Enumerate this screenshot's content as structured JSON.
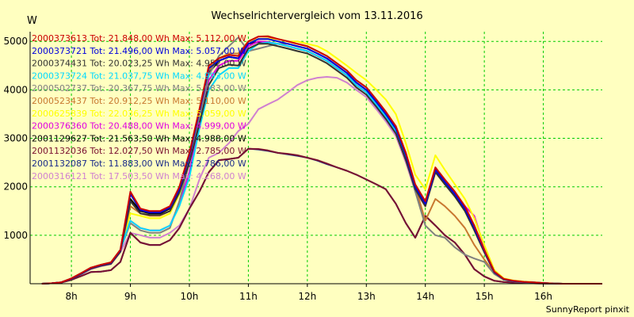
{
  "chart_data": {
    "type": "line",
    "title": "Wechselrichtervergleich vom 13.11.2016",
    "ylabel": "W",
    "xlabel": "",
    "footer": "SunnyReport pinxit",
    "ylim": [
      0,
      5200
    ],
    "xlim": [
      7.3,
      17.0
    ],
    "grid": true,
    "legend_position": "top-left",
    "yticks": [
      1000,
      2000,
      3000,
      4000,
      5000
    ],
    "xticks": [
      {
        "v": 8,
        "label": "8h"
      },
      {
        "v": 9,
        "label": "9h"
      },
      {
        "v": 10,
        "label": "10h"
      },
      {
        "v": 11,
        "label": "11h"
      },
      {
        "v": 12,
        "label": "12h"
      },
      {
        "v": 13,
        "label": "13h"
      },
      {
        "v": 14,
        "label": "14h"
      },
      {
        "v": 15,
        "label": "15h"
      },
      {
        "v": 16,
        "label": "16h"
      }
    ],
    "x": [
      7.5,
      7.67,
      7.83,
      8.0,
      8.17,
      8.33,
      8.5,
      8.67,
      8.83,
      9.0,
      9.17,
      9.33,
      9.5,
      9.67,
      9.83,
      10.0,
      10.17,
      10.33,
      10.5,
      10.67,
      10.83,
      11.0,
      11.17,
      11.33,
      11.5,
      11.67,
      11.83,
      12.0,
      12.17,
      12.33,
      12.5,
      12.67,
      12.83,
      13.0,
      13.17,
      13.33,
      13.5,
      13.67,
      13.83,
      14.0,
      14.17,
      14.33,
      14.5,
      14.67,
      14.83,
      15.0,
      15.17,
      15.33,
      15.5,
      15.67,
      15.83,
      16.0,
      16.17,
      16.33,
      16.5,
      16.67,
      16.83,
      17.0
    ],
    "series": [
      {
        "name": "2000373613",
        "tot": "Tot: 21.848,00 Wh",
        "max": "Max: 5.112,00 W",
        "color": "#cc0000",
        "values": [
          0,
          10,
          30,
          110,
          220,
          330,
          390,
          440,
          700,
          1900,
          1550,
          1500,
          1500,
          1600,
          2000,
          2700,
          3600,
          4500,
          4650,
          4720,
          4700,
          5000,
          5100,
          5100,
          5050,
          5000,
          4950,
          4900,
          4800,
          4700,
          4550,
          4400,
          4200,
          4050,
          3800,
          3550,
          3250,
          2700,
          2050,
          1700,
          2400,
          2150,
          1900,
          1600,
          1200,
          700,
          250,
          100,
          60,
          40,
          30,
          15,
          5,
          0,
          0,
          0,
          0,
          0
        ]
      },
      {
        "name": "2000373721",
        "tot": "Tot: 21.496,00 Wh",
        "max": "Max: 5.057,00 W",
        "color": "#0000dd",
        "values": [
          0,
          10,
          30,
          105,
          215,
          325,
          385,
          430,
          690,
          1850,
          1520,
          1470,
          1470,
          1570,
          1950,
          2650,
          3550,
          4450,
          4600,
          4680,
          4650,
          4950,
          5050,
          5050,
          5000,
          4950,
          4900,
          4850,
          4750,
          4650,
          4500,
          4350,
          4150,
          4000,
          3750,
          3500,
          3200,
          2650,
          2000,
          1650,
          2350,
          2100,
          1850,
          1550,
          1150,
          680,
          240,
          95,
          55,
          38,
          28,
          14,
          5,
          0,
          0,
          0,
          0,
          0
        ]
      },
      {
        "name": "2000374431",
        "tot": "Tot: 20.023,25 Wh",
        "max": "Max: 4.952,00 W",
        "color": "#333333",
        "values": [
          0,
          10,
          25,
          100,
          205,
          310,
          370,
          410,
          660,
          1700,
          1450,
          1420,
          1420,
          1500,
          1880,
          2500,
          3300,
          4100,
          4450,
          4520,
          4500,
          4850,
          4950,
          4950,
          4900,
          4850,
          4800,
          4750,
          4650,
          4550,
          4400,
          4250,
          4050,
          3900,
          3650,
          3400,
          3100,
          2550,
          1950,
          1600,
          2300,
          2050,
          1800,
          1500,
          1100,
          650,
          230,
          90,
          50,
          35,
          25,
          12,
          4,
          0,
          0,
          0,
          0,
          0
        ]
      },
      {
        "name": "2000373724",
        "tot": "Tot: 21.037,75 Wh",
        "max": "Max: 4.993,00 W",
        "color": "#00d8ff",
        "values": [
          0,
          10,
          30,
          100,
          210,
          320,
          380,
          420,
          700,
          1300,
          1150,
          1100,
          1100,
          1200,
          1600,
          2200,
          3200,
          4000,
          4300,
          4450,
          4450,
          4800,
          4950,
          4980,
          4950,
          4900,
          4850,
          4800,
          4700,
          4600,
          4450,
          4300,
          4100,
          3950,
          3700,
          3450,
          3150,
          2600,
          1950,
          1650,
          2350,
          2100,
          1850,
          1550,
          1200,
          700,
          240,
          95,
          55,
          38,
          28,
          14,
          5,
          0,
          0,
          0,
          0,
          0
        ]
      },
      {
        "name": "2000502737",
        "tot": "Tot: 20.367,75 Wh",
        "max": "Max: 5.083,00 W",
        "color": "#808080",
        "values": [
          0,
          10,
          30,
          110,
          220,
          330,
          390,
          440,
          700,
          1250,
          1100,
          1050,
          1050,
          1150,
          1700,
          2500,
          3400,
          4300,
          4700,
          4900,
          5083,
          4800,
          4850,
          4900,
          4950,
          4950,
          4900,
          4850,
          4750,
          4650,
          4500,
          4350,
          4150,
          4000,
          3750,
          3500,
          3200,
          2600,
          1900,
          1200,
          1000,
          950,
          750,
          600,
          520,
          450,
          200,
          80,
          45,
          30,
          20,
          10,
          4,
          0,
          0,
          0,
          0,
          0
        ]
      },
      {
        "name": "2000523437",
        "tot": "Tot: 20.912,25 Wh",
        "max": "Max: 5.110,00 W",
        "color": "#c87830",
        "values": [
          0,
          10,
          30,
          110,
          220,
          330,
          390,
          440,
          700,
          1600,
          1450,
          1400,
          1400,
          1500,
          1900,
          2600,
          3500,
          4400,
          4650,
          4750,
          4750,
          5000,
          5100,
          5110,
          5050,
          5000,
          4950,
          4900,
          4800,
          4700,
          4550,
          4400,
          4200,
          4050,
          3800,
          3550,
          3250,
          2700,
          2000,
          1300,
          1750,
          1600,
          1400,
          1150,
          800,
          500,
          220,
          90,
          50,
          35,
          25,
          12,
          4,
          0,
          0,
          0,
          0,
          0
        ]
      },
      {
        "name": "2000625839",
        "tot": "Tot: 22.036,25 Wh",
        "max": "Max: 5.059,00 W",
        "color": "#ffff00",
        "values": [
          0,
          10,
          30,
          110,
          220,
          330,
          390,
          440,
          700,
          1450,
          1400,
          1350,
          1350,
          1450,
          1850,
          2550,
          3500,
          4450,
          4650,
          4750,
          4750,
          5000,
          5050,
          5059,
          5050,
          5000,
          5000,
          4950,
          4900,
          4800,
          4650,
          4500,
          4350,
          4200,
          4000,
          3800,
          3500,
          2900,
          2250,
          1950,
          2650,
          2350,
          2050,
          1750,
          1350,
          800,
          280,
          110,
          65,
          45,
          32,
          16,
          6,
          0,
          0,
          0,
          0,
          0
        ]
      },
      {
        "name": "2000376360",
        "tot": "Tot: 20.488,00 Wh",
        "max": "Max: 4.999,00 W",
        "color": "#e000e0",
        "values": [
          0,
          10,
          30,
          105,
          215,
          325,
          385,
          430,
          690,
          1300,
          1150,
          1100,
          1100,
          1200,
          1650,
          2300,
          3300,
          4200,
          4500,
          4600,
          4600,
          4900,
          4999,
          4990,
          4950,
          4900,
          4850,
          4800,
          4700,
          4600,
          4450,
          4300,
          4100,
          3950,
          3700,
          3450,
          3150,
          2600,
          1950,
          1650,
          2350,
          2100,
          1850,
          1600,
          1400,
          750,
          250,
          100,
          55,
          38,
          28,
          14,
          5,
          0,
          0,
          0,
          0,
          0
        ]
      },
      {
        "name": "2001129627",
        "tot": "Tot: 21.563,50 Wh",
        "max": "Max: 4.988,00 W",
        "color": "#000000",
        "values": [
          0,
          10,
          30,
          110,
          220,
          330,
          390,
          440,
          700,
          1750,
          1500,
          1450,
          1450,
          1550,
          1950,
          2600,
          3450,
          4350,
          4600,
          4680,
          4650,
          4950,
          4988,
          4980,
          4950,
          4900,
          4850,
          4800,
          4700,
          4600,
          4450,
          4300,
          4100,
          3950,
          3700,
          3450,
          3150,
          2600,
          1950,
          1650,
          2350,
          2100,
          1850,
          1550,
          1150,
          680,
          240,
          95,
          55,
          38,
          28,
          14,
          5,
          0,
          0,
          0,
          0,
          0
        ]
      },
      {
        "name": "2001132036",
        "tot": "Tot: 12.027,50 Wh",
        "max": "Max: 2.785,00 W",
        "color": "#7a1030",
        "values": [
          0,
          10,
          25,
          80,
          160,
          240,
          250,
          280,
          450,
          1050,
          850,
          800,
          800,
          900,
          1150,
          1550,
          1900,
          2300,
          2550,
          2570,
          2600,
          2785,
          2780,
          2750,
          2700,
          2680,
          2650,
          2600,
          2550,
          2480,
          2400,
          2330,
          2250,
          2150,
          2050,
          1950,
          1650,
          1250,
          950,
          1400,
          1200,
          1000,
          850,
          600,
          300,
          150,
          60,
          35,
          25,
          15,
          8,
          3,
          0,
          0,
          0,
          0,
          0,
          0
        ]
      },
      {
        "name": "2001132087",
        "tot": "Tot: 11.883,00 Wh",
        "max": "Max: 2.786,00 W",
        "color": "#1a2a8a",
        "values": [
          0,
          10,
          25,
          80,
          160,
          240,
          250,
          280,
          450,
          1050,
          850,
          800,
          800,
          900,
          1150,
          1550,
          1900,
          2300,
          2550,
          2570,
          2600,
          2786,
          2770,
          2740,
          2700,
          2670,
          2640,
          2600,
          2540,
          2470,
          2400,
          2330,
          2250,
          2150,
          2050,
          1950,
          1650,
          1250,
          950,
          1400,
          1200,
          1000,
          850,
          600,
          300,
          150,
          60,
          35,
          25,
          15,
          8,
          3,
          0,
          0,
          0,
          0,
          0,
          0
        ]
      },
      {
        "name": "2000316121",
        "tot": "Tot: 17.503,50 Wh",
        "max": "Max: 4.268,00 W",
        "color": "#d080d0",
        "values": [
          0,
          10,
          30,
          100,
          200,
          300,
          360,
          400,
          650,
          1050,
          1000,
          950,
          950,
          1050,
          1200,
          1550,
          2150,
          2600,
          2700,
          2900,
          3150,
          3300,
          3600,
          3700,
          3800,
          3950,
          4100,
          4200,
          4250,
          4268,
          4250,
          4150,
          4000,
          3850,
          3600,
          3350,
          3050,
          2500,
          1900,
          1600,
          2300,
          2050,
          1800,
          1550,
          1100,
          650,
          230,
          90,
          50,
          35,
          25,
          12,
          4,
          0,
          0,
          0,
          0,
          0
        ]
      }
    ]
  }
}
